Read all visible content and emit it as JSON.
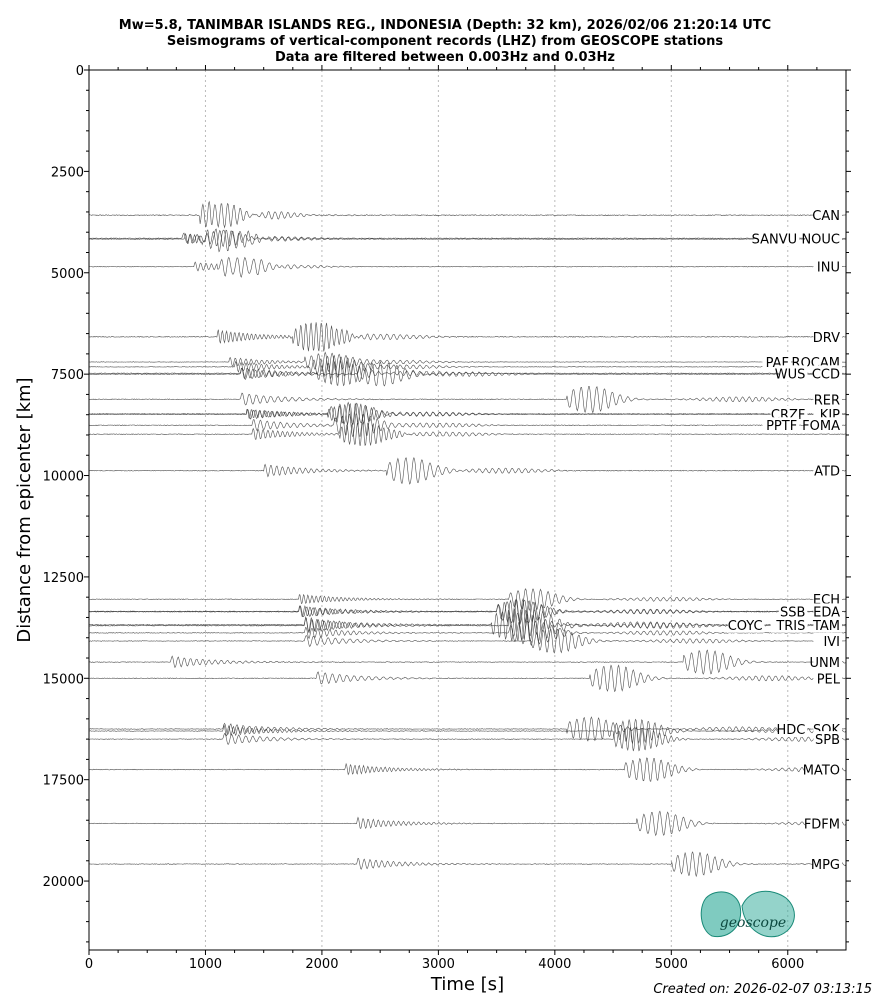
{
  "figure": {
    "title_lines": [
      "Mw=5.8, TANIMBAR ISLANDS REG., INDONESIA (Depth: 32 km), 2026/02/06 21:20:14 UTC",
      "Seismograms of vertical-component records (LHZ) from GEOSCOPE stations",
      "Data are filtered between 0.003Hz and 0.03Hz"
    ],
    "created": "Created on: 2026-02-07 03:13:15",
    "logo_text": "geoscope"
  },
  "chart_data": {
    "type": "line",
    "xlabel": "Time [s]",
    "ylabel": "Distance from epicenter [km]",
    "xlim": [
      0,
      6500
    ],
    "ylim": [
      0,
      21700
    ],
    "y_inverted": true,
    "x_ticks": [
      0,
      1000,
      2000,
      3000,
      4000,
      5000,
      6000
    ],
    "y_ticks": [
      0,
      2500,
      5000,
      7500,
      10000,
      12500,
      15000,
      17500,
      20000
    ],
    "grid": "vertical dotted",
    "stations": [
      {
        "name": "CAN",
        "distance": 3580,
        "arrival": 1050,
        "surface": 1150,
        "amp": 12
      },
      {
        "name": "SANVU",
        "distance": 4150,
        "arrival": 800,
        "surface": 1150,
        "amp": 8
      },
      {
        "name": "NOUC",
        "distance": 4170,
        "arrival": 820,
        "surface": 1170,
        "amp": 8
      },
      {
        "name": "INU",
        "distance": 4850,
        "arrival": 900,
        "surface": 1300,
        "amp": 7
      },
      {
        "name": "DRV",
        "distance": 6580,
        "arrival": 1100,
        "surface": 1950,
        "amp": 11
      },
      {
        "name": "PAF",
        "distance": 7200,
        "arrival": 1200,
        "surface": 2050,
        "amp": 7
      },
      {
        "name": "ROCAM",
        "distance": 7320,
        "arrival": 1250,
        "surface": 2100,
        "amp": 8
      },
      {
        "name": "WUS",
        "distance": 7480,
        "arrival": 1300,
        "surface": 2150,
        "amp": 9
      },
      {
        "name": "CCD",
        "distance": 7500,
        "arrival": 1300,
        "surface": 2500,
        "amp": 9
      },
      {
        "name": "RER",
        "distance": 8120,
        "arrival": 1300,
        "surface": 4300,
        "amp": 10
      },
      {
        "name": "CRZF",
        "distance": 8480,
        "arrival": 1350,
        "surface": 2250,
        "amp": 8
      },
      {
        "name": "KIP",
        "distance": 8490,
        "arrival": 1350,
        "surface": 2250,
        "amp": 8
      },
      {
        "name": "PPTF",
        "distance": 8760,
        "arrival": 1400,
        "surface": 2300,
        "amp": 9
      },
      {
        "name": "FOMA",
        "distance": 8980,
        "arrival": 1400,
        "surface": 2350,
        "amp": 9
      },
      {
        "name": "ATD",
        "distance": 9880,
        "arrival": 1500,
        "surface": 2750,
        "amp": 10
      },
      {
        "name": "ECH",
        "distance": 13050,
        "arrival": 1800,
        "surface": 3800,
        "amp": 8
      },
      {
        "name": "SSB",
        "distance": 13350,
        "arrival": 1800,
        "surface": 3700,
        "amp": 9
      },
      {
        "name": "EDA",
        "distance": 13360,
        "arrival": 1800,
        "surface": 3700,
        "amp": 9
      },
      {
        "name": "COYC",
        "distance": 13680,
        "arrival": 1850,
        "surface": 3650,
        "amp": 12
      },
      {
        "name": "TRIS",
        "distance": 13700,
        "arrival": 1850,
        "surface": 3800,
        "amp": 12
      },
      {
        "name": "TAM",
        "distance": 13880,
        "arrival": 1850,
        "surface": 3800,
        "amp": 9
      },
      {
        "name": "IVI",
        "distance": 14080,
        "arrival": 1850,
        "surface": 4000,
        "amp": 9
      },
      {
        "name": "UNM",
        "distance": 14600,
        "arrival": 700,
        "surface": 5300,
        "amp": 9
      },
      {
        "name": "PEL",
        "distance": 15000,
        "arrival": 1950,
        "surface": 4500,
        "amp": 10
      },
      {
        "name": "HDC",
        "distance": 16250,
        "arrival": 1150,
        "surface": 4300,
        "amp": 9
      },
      {
        "name": "SOK",
        "distance": 16300,
        "arrival": 1150,
        "surface": 4700,
        "amp": 9
      },
      {
        "name": "SPB",
        "distance": 16500,
        "arrival": 1150,
        "surface": 4700,
        "amp": 9
      },
      {
        "name": "MATO",
        "distance": 17250,
        "arrival": 2200,
        "surface": 4800,
        "amp": 9
      },
      {
        "name": "FDFM",
        "distance": 18580,
        "arrival": 2300,
        "surface": 4900,
        "amp": 9
      },
      {
        "name": "MPG",
        "distance": 19580,
        "arrival": 2300,
        "surface": 5200,
        "amp": 9
      }
    ]
  },
  "colors": {
    "trace": "#333333",
    "logo": "#2aa896",
    "grid": "#bbbbbb"
  }
}
